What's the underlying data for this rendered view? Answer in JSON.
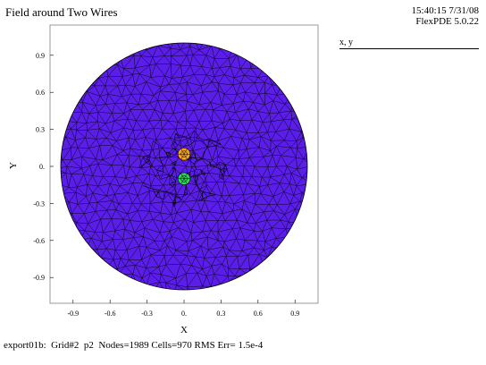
{
  "header": {
    "title": "Field around Two Wires",
    "time": "15:40:15 7/31/08",
    "version": "FlexPDE 5.0.22"
  },
  "legend": {
    "label": "x, y"
  },
  "footer": {
    "file": "export01b:",
    "grid": "Grid#2",
    "order": "p2",
    "nodes": "Nodes=1989",
    "cells": "Cells=970",
    "rms": "RMS Err= 1.5e-4"
  },
  "colors": {
    "domain_fill": "#5a1ee8",
    "mesh_line": "#000000",
    "wire_upper": "#f5a21e",
    "wire_lower": "#2ed15a"
  },
  "chart_data": {
    "type": "mesh",
    "xlabel": "X",
    "ylabel": "Y",
    "xlim": [
      -1.05,
      1.05
    ],
    "ylim": [
      -1.05,
      1.05
    ],
    "xticks": [
      "-0.9",
      "-0.6",
      "-0.3",
      "0.",
      "0.3",
      "0.6",
      "0.9"
    ],
    "xtick_values": [
      -0.9,
      -0.6,
      -0.3,
      0,
      0.3,
      0.6,
      0.9
    ],
    "yticks": [
      "0.9",
      "0.6",
      "0.3",
      "0.",
      "-0.3",
      "-0.6",
      "-0.9"
    ],
    "ytick_values": [
      0.9,
      0.6,
      0.3,
      0,
      -0.3,
      -0.6,
      -0.9
    ],
    "domain": {
      "shape": "circle",
      "center": [
        0,
        0
      ],
      "radius": 1.0
    },
    "wires": [
      {
        "center": [
          0,
          0.1
        ],
        "radius": 0.05
      },
      {
        "center": [
          0,
          -0.1
        ],
        "radius": 0.05
      }
    ]
  }
}
